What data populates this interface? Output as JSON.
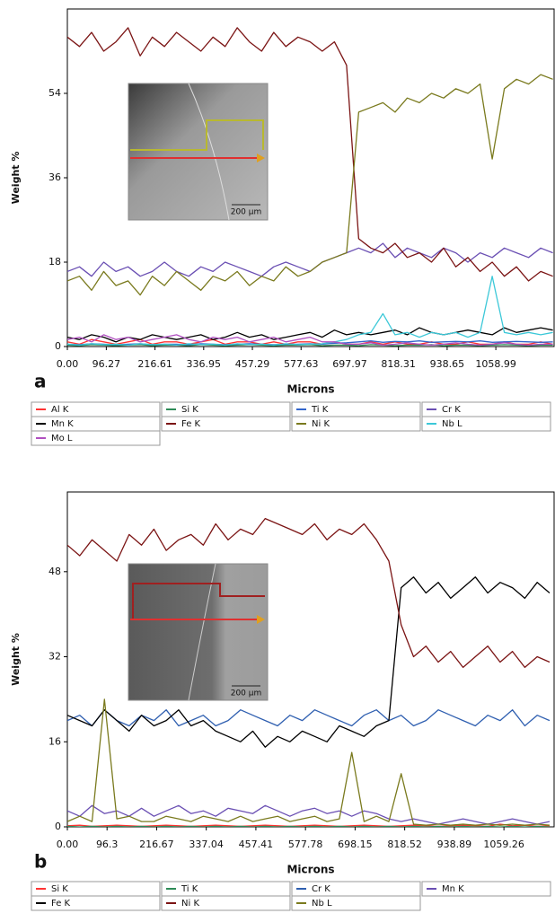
{
  "chart_data": [
    {
      "type": "line",
      "panel_label": "a",
      "x_label": "Microns",
      "y_label": "Weight %",
      "inset_scale": "200 µm",
      "x": [
        0,
        30,
        60,
        90,
        120,
        150,
        180,
        210,
        240,
        270,
        300,
        330,
        360,
        390,
        420,
        450,
        480,
        510,
        540,
        570,
        600,
        630,
        660,
        690,
        720,
        750,
        780,
        810,
        840,
        870,
        900,
        930,
        960,
        990,
        1020,
        1050,
        1080,
        1110,
        1140,
        1170,
        1200
      ],
      "xlim": [
        0,
        1203
      ],
      "xticks": [
        {
          "value": 0,
          "label": "0.00"
        },
        96.27,
        216.61,
        336.95,
        457.29,
        577.63,
        697.97,
        818.31,
        938.65,
        1058.99
      ],
      "ylim": [
        0,
        72
      ],
      "yticks": [
        0,
        18,
        36,
        54
      ],
      "series": [
        {
          "name": "Al K",
          "color": "#ff3333",
          "values": [
            1,
            0.5,
            1.5,
            1,
            0.5,
            1,
            1.5,
            0.5,
            1,
            1,
            0.5,
            1,
            1.5,
            0.5,
            1,
            1,
            0.5,
            1,
            0.5,
            1,
            1,
            0.5,
            1,
            0.5,
            0.5,
            1,
            0.5,
            1,
            0.5,
            0.5,
            1,
            0.5,
            0.5,
            1,
            0.5,
            0.5,
            1,
            0.5,
            0.5,
            1,
            0.5
          ]
        },
        {
          "name": "Si K",
          "color": "#2e8b57",
          "values": [
            0.3,
            0.2,
            0.4,
            0.3,
            0.2,
            0.3,
            0.4,
            0.2,
            0.3,
            0.3,
            0.2,
            0.4,
            0.3,
            0.2,
            0.3,
            0.4,
            0.3,
            0.2,
            0.3,
            0.3,
            0.4,
            0.2,
            0.3,
            0.3,
            0.2,
            0.4,
            0.3,
            0.2,
            0.3,
            0.3,
            0.4,
            0.2,
            0.3,
            0.3,
            0.2,
            0.3,
            0.4,
            0.3,
            0.2,
            0.3,
            0.3
          ]
        },
        {
          "name": "Ti K",
          "color": "#3366cc",
          "values": [
            0.5,
            0.4,
            0.6,
            0.5,
            0.4,
            0.5,
            0.6,
            0.4,
            0.5,
            0.5,
            0.4,
            0.6,
            0.5,
            0.4,
            0.5,
            0.6,
            0.5,
            0.4,
            0.5,
            0.5,
            0.6,
            0.5,
            0.7,
            0.8,
            1,
            1.2,
            0.9,
            1.1,
            1,
            1.2,
            0.9,
            1,
            1.1,
            1,
            1.2,
            0.9,
            1,
            1.1,
            1,
            0.9,
            1
          ]
        },
        {
          "name": "Cr K",
          "color": "#6a4fb3",
          "values": [
            16,
            17,
            15,
            18,
            16,
            17,
            15,
            16,
            18,
            16,
            15,
            17,
            16,
            18,
            17,
            16,
            15,
            17,
            18,
            17,
            16,
            18,
            19,
            20,
            21,
            20,
            22,
            19,
            21,
            20,
            19,
            21,
            20,
            18,
            20,
            19,
            21,
            20,
            19,
            21,
            20
          ]
        },
        {
          "name": "Mn K",
          "color": "#000000",
          "values": [
            2,
            1.5,
            2.5,
            2,
            1,
            2,
            1.5,
            2.5,
            2,
            1.5,
            2,
            2.5,
            1.5,
            2,
            3,
            2,
            2.5,
            1.5,
            2,
            2.5,
            3,
            2,
            3.5,
            2.5,
            3,
            2.5,
            3,
            3.5,
            2.5,
            4,
            3,
            2.5,
            3,
            3.5,
            3,
            2.5,
            4,
            3,
            3.5,
            4,
            3.5
          ]
        },
        {
          "name": "Fe K",
          "color": "#7b1414",
          "values": [
            66,
            64,
            67,
            63,
            65,
            68,
            62,
            66,
            64,
            67,
            65,
            63,
            66,
            64,
            68,
            65,
            63,
            67,
            64,
            66,
            65,
            63,
            65,
            60,
            23,
            21,
            20,
            22,
            19,
            20,
            18,
            21,
            17,
            19,
            16,
            18,
            15,
            17,
            14,
            16,
            15
          ]
        },
        {
          "name": "Ni K",
          "color": "#7a7a1e",
          "values": [
            14,
            15,
            12,
            16,
            13,
            14,
            11,
            15,
            13,
            16,
            14,
            12,
            15,
            14,
            16,
            13,
            15,
            14,
            17,
            15,
            16,
            18,
            19,
            20,
            50,
            51,
            52,
            50,
            53,
            52,
            54,
            53,
            55,
            54,
            56,
            40,
            55,
            57,
            56,
            58,
            57
          ]
        },
        {
          "name": "Nb L",
          "color": "#3cc8d8",
          "values": [
            0.5,
            0.3,
            0.6,
            0.4,
            0.5,
            0.3,
            0.6,
            0.4,
            0.5,
            0.3,
            0.6,
            0.4,
            0.5,
            0.3,
            0.6,
            0.4,
            0.5,
            0.3,
            0.6,
            0.4,
            0.5,
            0.6,
            1,
            1.5,
            2.5,
            3,
            7,
            2.5,
            3,
            2,
            3,
            2.5,
            3,
            2,
            3,
            15,
            3,
            2.5,
            3,
            2.5,
            3
          ]
        },
        {
          "name": "Mo L",
          "color": "#b04fc0",
          "values": [
            1.5,
            2,
            1,
            2.5,
            1.5,
            2,
            1,
            1.5,
            2,
            2.5,
            1.5,
            1,
            2,
            1.5,
            2,
            1,
            1.5,
            2,
            1,
            1.5,
            2,
            1,
            1,
            0.5,
            0.5,
            0.8,
            0.3,
            0.5,
            0.8,
            0.5,
            0.3,
            0.5,
            0.8,
            0.5,
            0.3,
            0.5,
            0.8,
            0.5,
            0.3,
            0.5,
            0.5
          ]
        }
      ]
    },
    {
      "type": "line",
      "panel_label": "b",
      "x_label": "Microns",
      "y_label": "Weight %",
      "inset_scale": "200 µm",
      "x": [
        0,
        30,
        60,
        90,
        120,
        150,
        180,
        210,
        240,
        270,
        300,
        330,
        360,
        390,
        420,
        450,
        480,
        510,
        540,
        570,
        600,
        630,
        660,
        690,
        720,
        750,
        780,
        810,
        840,
        870,
        900,
        930,
        960,
        990,
        1020,
        1050,
        1080,
        1110,
        1140,
        1170
      ],
      "xlim": [
        0,
        1181
      ],
      "xticks": [
        {
          "value": 0,
          "label": "0.00"
        },
        96.3,
        216.67,
        337.04,
        457.41,
        577.78,
        698.15,
        818.52,
        938.89,
        1059.26
      ],
      "ylim": [
        0,
        63
      ],
      "yticks": [
        0,
        16,
        32,
        48
      ],
      "series": [
        {
          "name": "Si K",
          "color": "#ff3333",
          "values": [
            0.2,
            0.3,
            0.1,
            0.2,
            0.3,
            0.2,
            0.1,
            0.2,
            0.3,
            0.2,
            0.1,
            0.2,
            0.3,
            0.2,
            0.1,
            0.2,
            0.3,
            0.2,
            0.1,
            0.2,
            0.3,
            0.2,
            0.1,
            0.2,
            0.3,
            0.2,
            0.1,
            0.2,
            0.3,
            0.2,
            0.1,
            0.2,
            0.3,
            0.2,
            0.1,
            0.5,
            0.2,
            0.3,
            0.1,
            0.2
          ]
        },
        {
          "name": "Ti K",
          "color": "#2e8b57",
          "values": [
            0.1,
            0,
            0.1,
            0,
            0.1,
            0,
            0.1,
            0,
            0.1,
            0,
            0.1,
            0,
            0.1,
            0,
            0.1,
            0,
            0.1,
            0,
            0.1,
            0,
            0.1,
            0,
            0.1,
            0,
            0.1,
            0,
            0.1,
            0,
            0.1,
            0,
            0.1,
            0,
            0.1,
            0,
            0.1,
            0,
            0.1,
            0,
            0.1,
            0
          ]
        },
        {
          "name": "Cr K",
          "color": "#2f5fb0",
          "values": [
            20,
            21,
            19,
            22,
            20,
            19,
            21,
            20,
            22,
            19,
            20,
            21,
            19,
            20,
            22,
            21,
            20,
            19,
            21,
            20,
            22,
            21,
            20,
            19,
            21,
            22,
            20,
            21,
            19,
            20,
            22,
            21,
            20,
            19,
            21,
            20,
            22,
            19,
            21,
            20
          ]
        },
        {
          "name": "Mn K",
          "color": "#6a4fb3",
          "values": [
            3,
            2,
            4,
            2.5,
            3,
            2,
            3.5,
            2,
            3,
            4,
            2.5,
            3,
            2,
            3.5,
            3,
            2.5,
            4,
            3,
            2,
            3,
            3.5,
            2.5,
            3,
            2,
            3,
            2.5,
            1.5,
            1,
            1.5,
            1,
            0.5,
            1,
            1.5,
            1,
            0.5,
            1,
            1.5,
            1,
            0.5,
            1
          ]
        },
        {
          "name": "Fe K",
          "color": "#000000",
          "values": [
            21,
            20,
            19,
            22,
            20,
            18,
            21,
            19,
            20,
            22,
            19,
            20,
            18,
            17,
            16,
            18,
            15,
            17,
            16,
            18,
            17,
            16,
            19,
            18,
            17,
            19,
            20,
            45,
            47,
            44,
            46,
            43,
            45,
            47,
            44,
            46,
            45,
            43,
            46,
            44
          ]
        },
        {
          "name": "Ni K",
          "color": "#7b1414",
          "values": [
            53,
            51,
            54,
            52,
            50,
            55,
            53,
            56,
            52,
            54,
            55,
            53,
            57,
            54,
            56,
            55,
            58,
            57,
            56,
            55,
            57,
            54,
            56,
            55,
            57,
            54,
            50,
            38,
            32,
            34,
            31,
            33,
            30,
            32,
            34,
            31,
            33,
            30,
            32,
            31
          ]
        },
        {
          "name": "Nb L",
          "color": "#7a7a1e",
          "values": [
            1,
            2,
            1,
            24,
            1.5,
            2,
            1,
            1,
            2,
            1.5,
            1,
            2,
            1.5,
            1,
            2,
            1,
            1.5,
            2,
            1,
            1.5,
            2,
            1,
            1.5,
            14,
            1,
            2,
            1,
            10,
            0.5,
            0.3,
            0.5,
            0.3,
            0.5,
            0.3,
            0.5,
            0.3,
            0.5,
            0.3,
            0.5,
            0.3
          ]
        }
      ]
    }
  ]
}
